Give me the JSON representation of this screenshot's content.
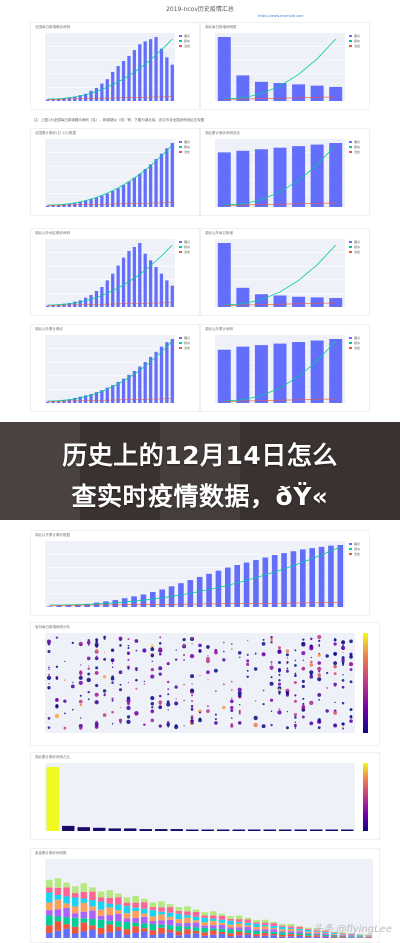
{
  "document": {
    "title": "2019-ncov历史疫情汇总",
    "link": "https://www.example.com"
  },
  "captions": {
    "section1": "注：上图1为全国每日新增确诊病例（柱），新增疑似（线）等；下图为湖北省、武汉市及全国其他地区比较图",
    "chart1": "全国每日新增确诊病例",
    "chart2": "湖北每日新增病例数",
    "chart3": "全国累计确诊(日 1/2)数据",
    "chart4": "湖北累计确诊病例变化",
    "chart5": "湖北以外地区确诊病例",
    "chart6": "湖北以外每日新增",
    "chart7": "湖北以外累计确诊",
    "chart8": "湖北以外累计病例",
    "chart9": "湖北以外累计确诊数据",
    "chart10": "省份每日新增病例分布",
    "chart11": "湖北累计确诊病例占比",
    "chart12": "各省累计确诊病例数"
  },
  "legend": {
    "confirmed": "确诊",
    "suspected": "疑似",
    "cured": "治愈"
  },
  "banner": {
    "line1": "历史上的12月14日怎么",
    "line2": "查实时疫情数据，ðŸ«"
  },
  "watermark": "头条 @flyingLee",
  "chart_data": [
    {
      "type": "bar",
      "values": [
        2,
        3,
        3,
        4,
        5,
        6,
        8,
        10,
        14,
        18,
        24,
        30,
        40,
        48,
        55,
        62,
        70,
        78,
        82,
        85,
        88,
        72,
        60,
        50
      ]
    },
    {
      "type": "bar",
      "values": [
        100,
        40,
        30,
        28,
        26,
        24,
        22
      ]
    },
    {
      "type": "bar",
      "values": [
        2,
        3,
        3,
        4,
        5,
        6,
        8,
        10,
        12,
        14,
        17,
        20,
        24,
        28,
        33,
        38,
        44,
        50,
        57,
        64,
        72,
        80,
        88,
        96
      ]
    },
    {
      "type": "bar",
      "values": [
        70,
        72,
        74,
        76,
        78,
        80,
        82
      ]
    },
    {
      "type": "bar",
      "values": [
        2,
        3,
        4,
        5,
        6,
        8,
        10,
        14,
        18,
        24,
        30,
        40,
        50,
        62,
        74,
        84,
        90,
        96,
        80,
        70,
        60,
        50,
        40,
        32
      ]
    },
    {
      "type": "bar",
      "values": [
        100,
        30,
        20,
        18,
        16,
        15,
        14
      ]
    },
    {
      "type": "bar",
      "values": [
        2,
        3,
        4,
        5,
        6,
        8,
        10,
        12,
        14,
        17,
        20,
        24,
        28,
        33,
        38,
        44,
        50,
        57,
        64,
        72,
        80,
        88,
        95,
        100
      ]
    },
    {
      "type": "bar",
      "values": [
        70,
        74,
        76,
        78,
        80,
        82,
        84
      ]
    },
    {
      "type": "bar",
      "values": [
        1,
        2,
        3,
        4,
        5,
        7,
        9,
        11,
        14,
        17,
        20,
        24,
        28,
        33,
        38,
        43,
        48,
        53,
        58,
        63,
        67,
        71,
        75,
        79,
        83,
        86,
        89,
        92,
        94,
        96,
        98,
        99
      ]
    },
    {
      "type": "scatter",
      "categories": 39
    },
    {
      "type": "heatmap",
      "values": [
        100,
        8,
        6,
        5,
        4,
        4,
        3,
        3,
        3,
        2,
        2,
        2,
        2,
        2,
        2,
        1,
        1,
        1,
        1,
        1
      ]
    },
    {
      "type": "bar",
      "values": [
        90,
        85,
        82,
        80,
        78,
        75,
        72,
        68,
        66,
        63,
        60,
        58,
        55,
        52,
        50,
        48,
        45,
        42,
        40,
        38,
        36,
        34,
        32,
        30,
        28,
        26,
        24,
        22,
        20,
        18,
        16,
        14,
        12,
        10,
        8,
        7,
        6,
        5
      ]
    }
  ]
}
